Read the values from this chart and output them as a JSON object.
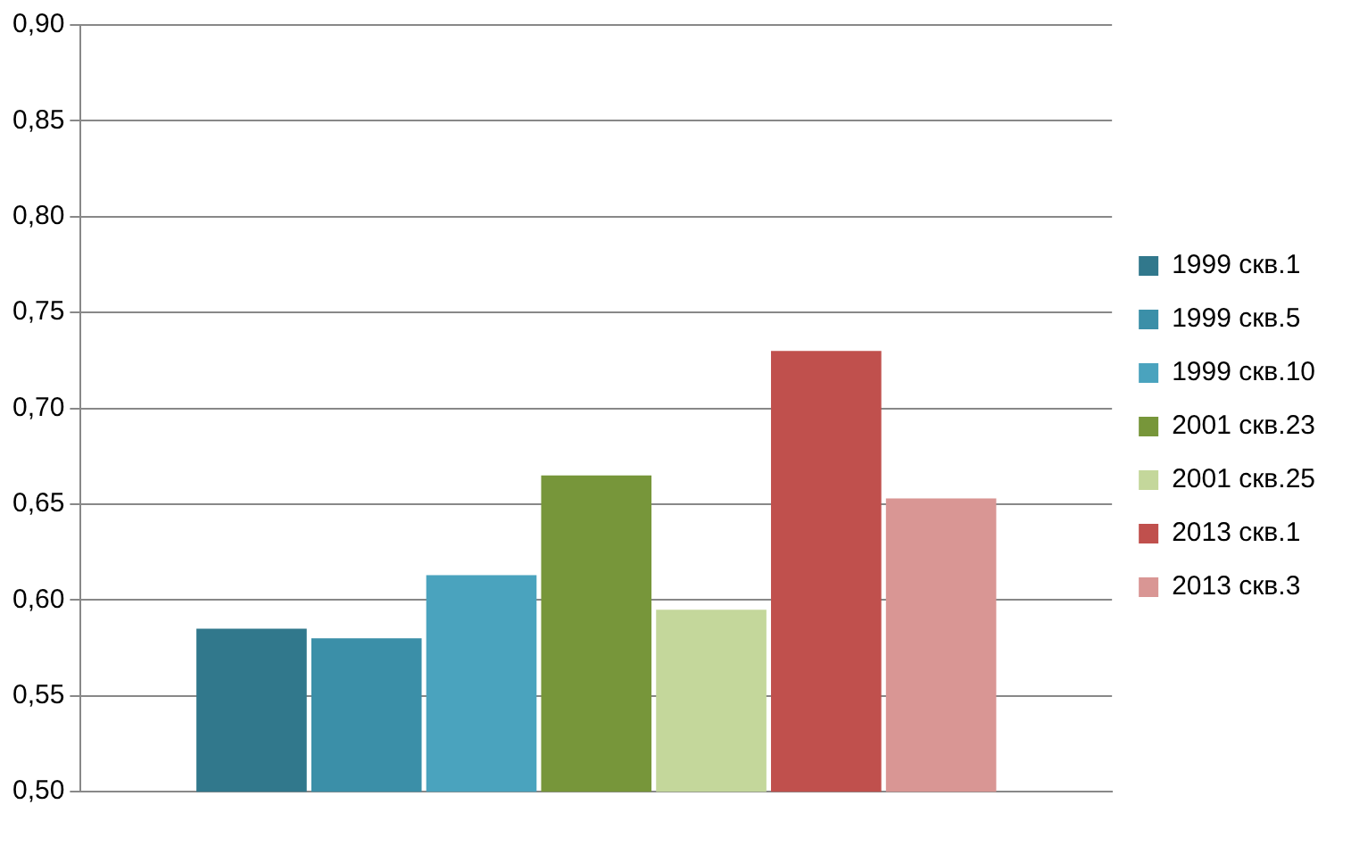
{
  "chart_data": {
    "type": "bar",
    "categories": [
      null
    ],
    "series": [
      {
        "name": "1999 скв.1",
        "color": "#31788c",
        "values": [
          0.585
        ]
      },
      {
        "name": "1999 скв.5",
        "color": "#3b8fa8",
        "values": [
          0.58
        ]
      },
      {
        "name": "1999 скв.10",
        "color": "#4aa3be",
        "values": [
          0.613
        ]
      },
      {
        "name": "2001 скв.23",
        "color": "#77963a",
        "values": [
          0.665
        ]
      },
      {
        "name": "2001 скв.25",
        "color": "#c4d79b",
        "values": [
          0.595
        ]
      },
      {
        "name": "2013 скв.1",
        "color": "#c0504d",
        "values": [
          0.73
        ]
      },
      {
        "name": "2013 скв.3",
        "color": "#d99694",
        "values": [
          0.653
        ]
      }
    ],
    "ylim": [
      0.5,
      0.9
    ],
    "yticks": [
      {
        "value": 0.5,
        "label": "0,50"
      },
      {
        "value": 0.55,
        "label": "0,55"
      },
      {
        "value": 0.6,
        "label": "0,60"
      },
      {
        "value": 0.65,
        "label": "0,65"
      },
      {
        "value": 0.7,
        "label": "0,70"
      },
      {
        "value": 0.75,
        "label": "0,75"
      },
      {
        "value": 0.8,
        "label": "0,80"
      },
      {
        "value": 0.85,
        "label": "0,85"
      },
      {
        "value": 0.9,
        "label": "0,90"
      }
    ],
    "grid": "y",
    "legend": "right"
  }
}
